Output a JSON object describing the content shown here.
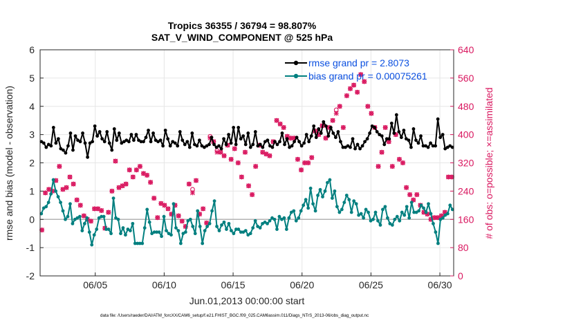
{
  "chart_data": {
    "type": "line",
    "title_line1": "Tropics 36355 / 36794 = 98.807%",
    "title_line2": "SAT_V_WIND_COMPONENT @ 525 hPa",
    "xlabel": "Jun.01,2013 00:00:00 start",
    "ylabel_left": "rmse and bias (model - observation)",
    "ylabel_right": "# of obs: o=possible; ×=assimilated",
    "footnote": "data file: /Users/raeder/DAI/ATM_forcXX/CAM6_setup/f.e21.FHIST_BGC.f09_025.CAM6assim.011/Diags_NTrS_2013-06/obs_diag_output.nc",
    "x_ticks": [
      "06/05",
      "06/10",
      "06/15",
      "06/20",
      "06/25",
      "06/30"
    ],
    "x_tick_days": [
      5,
      10,
      15,
      20,
      25,
      30
    ],
    "xlim_days": [
      1,
      31
    ],
    "ylim_left": [
      -2,
      6
    ],
    "yticks_left": [
      "-2",
      "-1",
      "0",
      "1",
      "2",
      "3",
      "4",
      "5",
      "6"
    ],
    "ylim_right": [
      0,
      640
    ],
    "yticks_right": [
      "0",
      "80",
      "160",
      "240",
      "320",
      "400",
      "480",
      "560",
      "640"
    ],
    "legend": [
      {
        "label": "rmse grand pr = 2.8073",
        "color": "#000000"
      },
      {
        "label": "bias grand pr = 0.00075261",
        "color": "#007f7f"
      }
    ],
    "colors": {
      "rmse": "#000000",
      "bias": "#007f7f",
      "obs": "#d9175f",
      "zero_line": "#b3b3b3",
      "legend_text": "#0a4fe0"
    },
    "series": [
      {
        "name": "rmse",
        "values": [
          2.75,
          2.7,
          2.55,
          2.65,
          2.6,
          3.25,
          2.7,
          2.85,
          2.5,
          2.45,
          2.35,
          2.6,
          3.05,
          2.45,
          2.95,
          2.8,
          2.75,
          3.05,
          2.7,
          2.2,
          2.7,
          2.75,
          3.3,
          2.95,
          3.1,
          2.85,
          2.75,
          3.1,
          2.7,
          2.45,
          3.2,
          2.8,
          3.05,
          2.7,
          2.75,
          2.8,
          2.75,
          3.0,
          2.8,
          3.0,
          2.8,
          2.75,
          2.75,
          2.9,
          3.15,
          2.75,
          3.05,
          2.8,
          2.75,
          2.8,
          2.6,
          3.15,
          2.85,
          2.6,
          2.75,
          2.7,
          2.6,
          3.1,
          2.8,
          2.65,
          2.75,
          2.55,
          3.05,
          2.65,
          2.6,
          2.8,
          2.6,
          2.55,
          2.6,
          2.65,
          2.9,
          2.65,
          2.55,
          2.6,
          2.5,
          2.85,
          2.65,
          3.0,
          2.7,
          3.25,
          2.65,
          3.25,
          2.85,
          2.95,
          2.65,
          3.05,
          2.55,
          2.65,
          3.1,
          2.6,
          2.65,
          2.55,
          2.75,
          2.8,
          2.6,
          2.55,
          2.75,
          2.65,
          2.75,
          3.05,
          2.65,
          2.85,
          2.55,
          2.6,
          2.75,
          2.9,
          2.75,
          2.6,
          2.7,
          3.0,
          2.75,
          2.95,
          3.3,
          2.9,
          3.2,
          3.05,
          3.45,
          3.3,
          2.95,
          3.25,
          3.05,
          2.9,
          3.1,
          2.75,
          2.55,
          2.55,
          2.6,
          2.55,
          2.85,
          2.5,
          2.65,
          2.5,
          2.6,
          2.75,
          2.85,
          3.05,
          3.3,
          3.25,
          3.1,
          3.0,
          2.95,
          2.65,
          2.85,
          2.85,
          3.4,
          3.05,
          3.7,
          3.1,
          2.9,
          3.15,
          2.85,
          2.8,
          2.55,
          3.2,
          2.8,
          2.7,
          2.95,
          2.6,
          2.6,
          2.55,
          2.7,
          2.6,
          2.6,
          3.55,
          2.9,
          3.0,
          2.5,
          2.55,
          2.6,
          2.55
        ]
      },
      {
        "name": "bias",
        "values": [
          0.2,
          0.4,
          0.45,
          0.6,
          0.9,
          1.4,
          1.0,
          0.8,
          0.6,
          0.3,
          0.0,
          0.1,
          0.55,
          -0.15,
          0.0,
          0.05,
          0.1,
          -0.4,
          -0.15,
          0.05,
          -0.45,
          -0.9,
          -0.55,
          -0.35,
          0.05,
          0.1,
          0.1,
          -0.35,
          -0.35,
          -0.5,
          0.75,
          0.05,
          0.0,
          -0.5,
          -0.3,
          -0.55,
          -0.35,
          -0.4,
          -0.15,
          -0.85,
          -0.85,
          -0.85,
          -0.85,
          -0.3,
          0.35,
          -0.1,
          -0.5,
          -0.45,
          -0.45,
          -0.45,
          -0.6,
          0.1,
          -0.4,
          -0.5,
          -0.55,
          0.55,
          -0.3,
          -0.4,
          -0.85,
          -0.5,
          -0.45,
          -0.05,
          0.0,
          -0.25,
          -0.5,
          0.3,
          -0.25,
          -0.85,
          -0.4,
          -0.25,
          -0.15,
          0.3,
          0.65,
          -0.25,
          -0.4,
          -0.2,
          -0.1,
          -0.35,
          -0.15,
          -0.4,
          -0.5,
          -0.35,
          -0.35,
          -0.45,
          -0.45,
          -0.4,
          -0.55,
          -0.5,
          -0.3,
          -0.05,
          -0.25,
          -0.3,
          -0.15,
          -0.1,
          -0.15,
          -0.05,
          0.05,
          0.0,
          -0.35,
          0.1,
          0.0,
          0.05,
          -0.35,
          0.05,
          0.25,
          0.3,
          -0.05,
          0.05,
          0.3,
          0.5,
          0.7,
          0.4,
          1.1,
          0.55,
          0.3,
          0.85,
          1.05,
          0.8,
          1.0,
          1.3,
          1.4,
          0.75,
          1.0,
          0.45,
          0.25,
          0.35,
          0.6,
          0.85,
          0.7,
          0.25,
          0.65,
          0.55,
          0.15,
          0.2,
          0.05,
          0.35,
          0.25,
          -0.05,
          0.0,
          0.25,
          -0.05,
          -0.2,
          0.35,
          0.45,
          0.05,
          -0.15,
          -0.2,
          0.0,
          0.1,
          -0.05,
          0.25,
          0.15,
          0.45,
          0.05,
          0.6,
          0.25,
          0.25,
          0.3,
          0.5,
          0.4,
          0.25,
          0.55,
          0.2,
          -0.15,
          -0.45,
          -0.85,
          0.0,
          0.05,
          0.15,
          0.2,
          0.5,
          0.35
        ]
      },
      {
        "name": "obs_possible",
        "values": [
          130,
          235,
          245,
          240,
          270,
          310,
          245,
          250,
          280,
          260,
          215,
          200,
          170,
          160,
          155,
          190,
          190,
          185,
          135,
          180,
          240,
          325,
          250,
          255,
          260,
          300,
          280,
          300,
          310,
          290,
          285,
          265,
          220,
          165,
          205,
          200,
          190,
          175,
          200,
          170,
          155,
          140,
          260,
          245,
          270,
          175,
          190,
          150,
          395,
          380,
          355,
          350,
          340,
          370,
          330,
          360,
          320,
          280,
          350,
          255,
          230,
          310,
          370,
          350,
          345,
          340,
          380,
          440,
          430,
          420,
          395,
          390,
          390,
          330,
          300,
          320,
          320,
          335,
          410,
          400,
          425,
          390,
          420,
          440,
          470,
          480,
          420,
          510,
          530,
          540,
          520,
          570,
          550,
          480,
          460,
          420,
          310,
          350,
          420,
          380,
          310,
          400,
          330,
          320,
          250,
          230,
          215,
          230,
          200,
          180,
          175,
          160,
          165,
          165,
          170,
          180,
          280,
          280
        ]
      },
      {
        "name": "obs_assimilated",
        "values": [
          130,
          235,
          245,
          240,
          270,
          310,
          245,
          250,
          280,
          260,
          215,
          200,
          170,
          160,
          155,
          190,
          190,
          185,
          135,
          180,
          240,
          325,
          250,
          255,
          260,
          300,
          280,
          300,
          310,
          290,
          285,
          265,
          220,
          165,
          205,
          200,
          190,
          175,
          200,
          170,
          155,
          140,
          260,
          235,
          270,
          175,
          190,
          150,
          390,
          380,
          350,
          350,
          340,
          370,
          330,
          360,
          320,
          280,
          350,
          255,
          230,
          310,
          370,
          350,
          345,
          340,
          380,
          440,
          430,
          420,
          395,
          390,
          390,
          330,
          300,
          320,
          320,
          335,
          410,
          400,
          425,
          390,
          420,
          440,
          460,
          480,
          420,
          510,
          530,
          540,
          520,
          570,
          550,
          480,
          460,
          420,
          310,
          350,
          420,
          380,
          310,
          400,
          330,
          320,
          250,
          230,
          215,
          230,
          200,
          180,
          175,
          160,
          165,
          165,
          170,
          180,
          280,
          280
        ]
      }
    ]
  }
}
